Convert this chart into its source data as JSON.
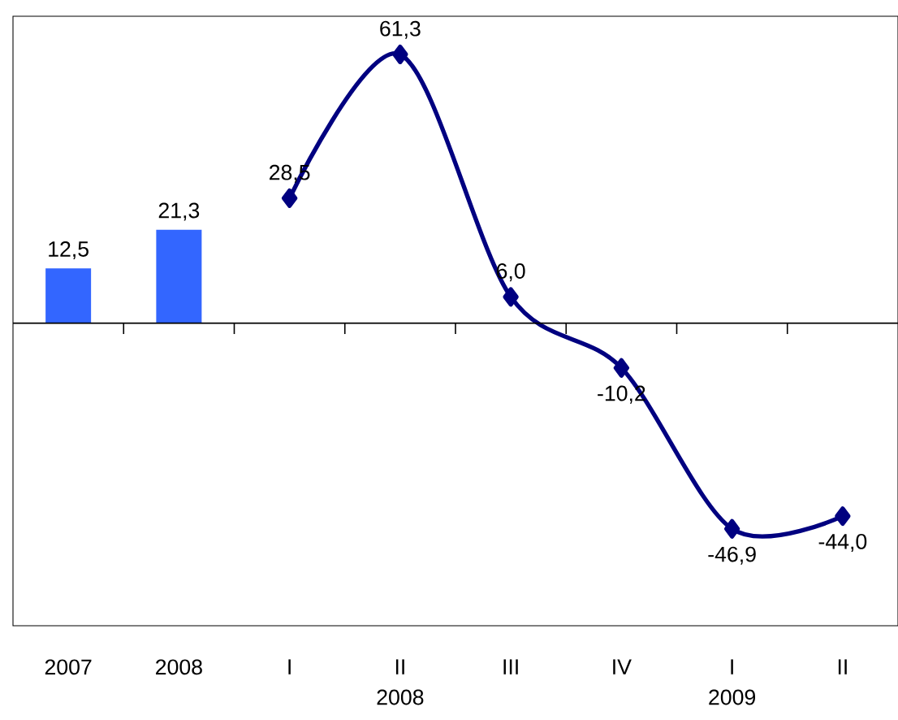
{
  "chart_data": {
    "type": "bar",
    "categories": [
      "2007",
      "2008",
      "I",
      "II",
      "III",
      "IV",
      "I",
      "II"
    ],
    "series": [
      {
        "color": "#3366ff",
        "values": [
          12.5,
          21.3,
          null,
          null,
          null,
          null,
          null,
          null
        ],
        "value_labels": [
          "12,5",
          "21,3",
          null,
          null,
          null,
          null,
          null,
          null
        ]
      },
      {
        "type": "line",
        "color": "#000080",
        "marker": "diamond",
        "values": [
          null,
          null,
          28.5,
          61.3,
          6.0,
          -10.2,
          -46.9,
          -44.0
        ],
        "value_labels": [
          null,
          null,
          "28,5",
          "61,3",
          "6,0",
          "-10,2",
          "-46,9",
          "-44,0"
        ]
      }
    ],
    "ylim": [
      -69,
      70
    ],
    "grid": false,
    "annotations": [
      "2008",
      "2009"
    ]
  }
}
